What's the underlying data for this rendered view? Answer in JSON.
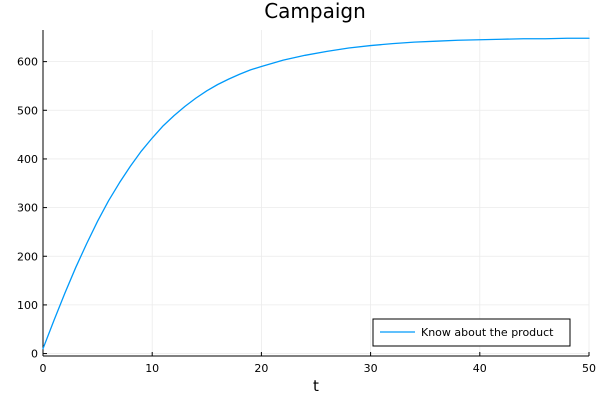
{
  "chart_data": {
    "type": "line",
    "title": "Campaign",
    "xlabel": "t",
    "ylabel": "",
    "xlim": [
      0,
      50
    ],
    "ylim": [
      -5,
      665
    ],
    "x_ticks": [
      0,
      10,
      20,
      30,
      40,
      50
    ],
    "y_ticks": [
      0,
      100,
      200,
      300,
      400,
      500,
      600
    ],
    "grid": true,
    "legend_position": "bottom-right",
    "series": [
      {
        "name": "Know about the product",
        "color": "#009AFA",
        "x": [
          0,
          1,
          2,
          3,
          4,
          5,
          6,
          7,
          8,
          9,
          10,
          11,
          12,
          13,
          14,
          15,
          16,
          17,
          18,
          19,
          20,
          22,
          24,
          26,
          28,
          30,
          32,
          34,
          36,
          38,
          40,
          42,
          44,
          46,
          48,
          50
        ],
        "y": [
          10,
          68,
          124,
          177,
          226,
          272,
          314,
          351,
          385,
          416,
          443,
          468,
          489,
          508,
          525,
          540,
          553,
          564,
          574,
          583,
          590,
          603,
          613,
          621,
          628,
          633,
          637,
          640,
          642,
          644,
          645,
          646,
          647,
          647,
          648,
          648
        ]
      }
    ]
  }
}
